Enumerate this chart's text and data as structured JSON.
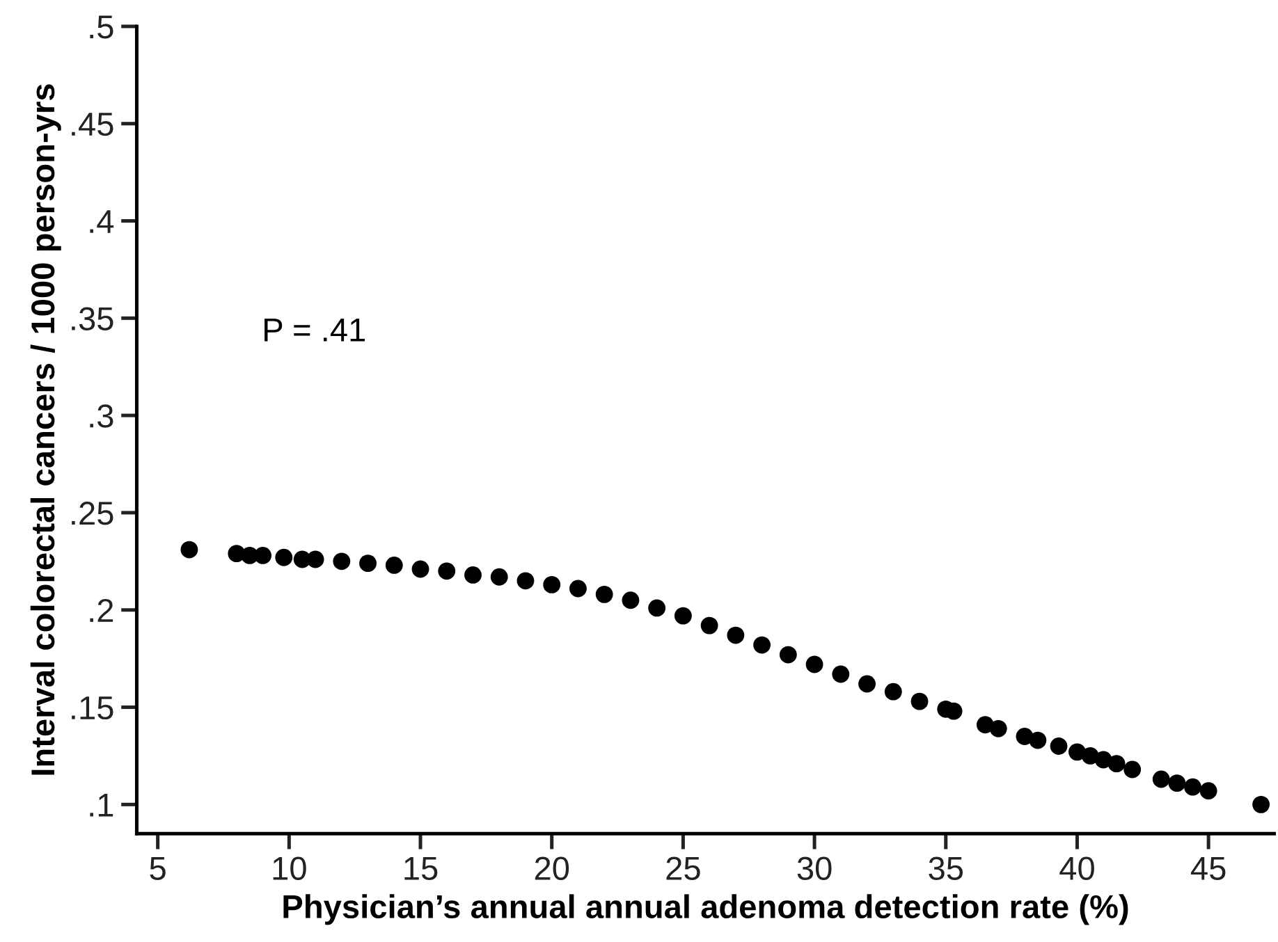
{
  "chart_data": {
    "type": "scatter",
    "xlabel": "Physician’s annual annual adenoma detection rate (%)",
    "ylabel": "Interval colorectal cancers / 1000 person-yrs",
    "annotations": [
      "P = .41"
    ],
    "marker": "circle",
    "grid": false,
    "xlim": [
      4.2,
      47.5
    ],
    "xticks": [
      5,
      10,
      15,
      20,
      25,
      30,
      35,
      40,
      45
    ],
    "ylim": [
      0.085,
      0.5
    ],
    "yticks": [
      {
        "value": 0.1,
        "label": ".1"
      },
      {
        "value": 0.15,
        "label": ".15"
      },
      {
        "value": 0.2,
        "label": ".2"
      },
      {
        "value": 0.25,
        "label": ".25"
      },
      {
        "value": 0.3,
        "label": ".3"
      },
      {
        "value": 0.35,
        "label": ".35"
      },
      {
        "value": 0.4,
        "label": ".4"
      },
      {
        "value": 0.45,
        "label": ".45"
      },
      {
        "value": 0.5,
        "label": ".5"
      }
    ],
    "series": [
      {
        "color": "#000000",
        "x": [
          6.2,
          8,
          8.5,
          9,
          9.8,
          10.5,
          11,
          12,
          13,
          14,
          15,
          16,
          17,
          18,
          19,
          20,
          21,
          22,
          23,
          24,
          25,
          26,
          27,
          28,
          29,
          30,
          31,
          32,
          33,
          34,
          35,
          35.3,
          36.5,
          37,
          38,
          38.5,
          39.3,
          40,
          40.5,
          41,
          41.5,
          42.1,
          43.2,
          43.8,
          44.4,
          45,
          47
        ],
        "values": [
          0.231,
          0.229,
          0.228,
          0.228,
          0.227,
          0.226,
          0.226,
          0.225,
          0.224,
          0.223,
          0.221,
          0.22,
          0.218,
          0.217,
          0.215,
          0.213,
          0.211,
          0.208,
          0.205,
          0.201,
          0.197,
          0.192,
          0.187,
          0.182,
          0.177,
          0.172,
          0.167,
          0.162,
          0.158,
          0.153,
          0.149,
          0.148,
          0.141,
          0.139,
          0.135,
          0.133,
          0.13,
          0.127,
          0.125,
          0.123,
          0.121,
          0.118,
          0.113,
          0.111,
          0.109,
          0.107,
          0.1
        ]
      }
    ]
  }
}
